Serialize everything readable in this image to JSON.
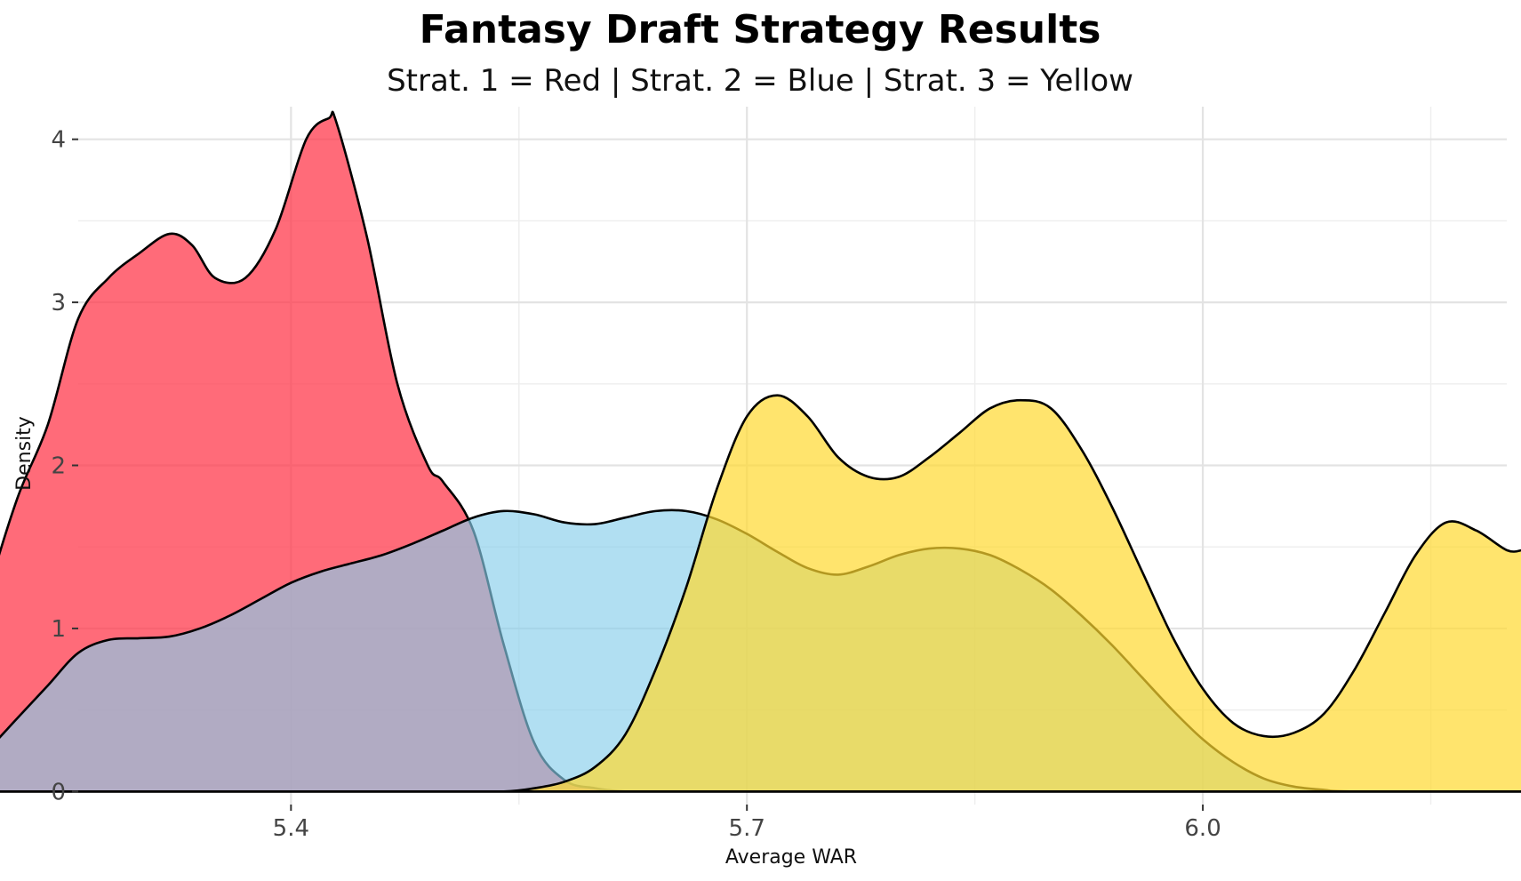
{
  "chart_data": {
    "type": "area",
    "title": "Fantasy Draft Strategy Results",
    "subtitle": "Strat. 1 = Red | Strat. 2 = Blue | Strat. 3 = Yellow",
    "xlabel": "Average WAR",
    "ylabel": "Density",
    "xlim": [
      5.26,
      6.2
    ],
    "ylim": [
      -0.08,
      4.2
    ],
    "x_ticks": [
      5.4,
      5.7,
      6.0
    ],
    "x_tick_labels": [
      "5.4",
      "5.7",
      "6.0"
    ],
    "y_ticks": [
      0,
      1,
      2,
      3,
      4
    ],
    "y_tick_labels": [
      "0",
      "1",
      "2",
      "3",
      "4"
    ],
    "grid": true,
    "legend": "none",
    "series": [
      {
        "color": "#ff3a4c",
        "opacity": 0.75,
        "x": [
          5.185,
          5.2,
          5.22,
          5.24,
          5.26,
          5.28,
          5.3,
          5.32,
          5.335,
          5.35,
          5.37,
          5.39,
          5.41,
          5.425,
          5.43,
          5.45,
          5.47,
          5.49,
          5.5,
          5.52,
          5.54,
          5.56,
          5.58,
          5.6,
          5.62,
          5.64,
          5.66,
          5.68,
          5.7,
          5.8,
          5.9,
          6.0,
          6.1,
          6.21
        ],
        "y": [
          0.66,
          1.2,
          1.8,
          2.25,
          2.9,
          3.15,
          3.3,
          3.42,
          3.35,
          3.15,
          3.15,
          3.45,
          4.0,
          4.13,
          4.1,
          3.4,
          2.5,
          2.0,
          1.9,
          1.6,
          0.9,
          0.3,
          0.07,
          0.02,
          0.0,
          0.0,
          0.0,
          0.0,
          0.0,
          0.0,
          0.0,
          0.0,
          0.0,
          0.0
        ]
      },
      {
        "color": "#87ceeb",
        "opacity": 0.65,
        "x": [
          5.185,
          5.2,
          5.22,
          5.24,
          5.26,
          5.28,
          5.3,
          5.32,
          5.34,
          5.36,
          5.38,
          5.4,
          5.42,
          5.44,
          5.46,
          5.48,
          5.5,
          5.52,
          5.54,
          5.56,
          5.58,
          5.6,
          5.62,
          5.64,
          5.66,
          5.68,
          5.7,
          5.72,
          5.74,
          5.76,
          5.78,
          5.8,
          5.82,
          5.84,
          5.86,
          5.88,
          5.9,
          5.92,
          5.94,
          5.96,
          5.98,
          6.0,
          6.02,
          6.04,
          6.06,
          6.08,
          6.1,
          6.21
        ],
        "y": [
          0.12,
          0.25,
          0.45,
          0.65,
          0.85,
          0.93,
          0.94,
          0.95,
          1.0,
          1.08,
          1.18,
          1.28,
          1.35,
          1.4,
          1.45,
          1.52,
          1.6,
          1.68,
          1.72,
          1.7,
          1.65,
          1.64,
          1.68,
          1.72,
          1.72,
          1.67,
          1.58,
          1.47,
          1.37,
          1.33,
          1.38,
          1.45,
          1.49,
          1.49,
          1.45,
          1.36,
          1.24,
          1.08,
          0.9,
          0.7,
          0.5,
          0.32,
          0.18,
          0.08,
          0.03,
          0.01,
          0.0,
          0.0
        ]
      },
      {
        "color": "#ffd82f",
        "opacity": 0.7,
        "x": [
          5.185,
          5.3,
          5.4,
          5.5,
          5.54,
          5.56,
          5.58,
          5.6,
          5.62,
          5.64,
          5.66,
          5.68,
          5.7,
          5.72,
          5.74,
          5.76,
          5.78,
          5.8,
          5.82,
          5.84,
          5.86,
          5.88,
          5.9,
          5.92,
          5.94,
          5.96,
          5.98,
          6.0,
          6.02,
          6.04,
          6.06,
          6.08,
          6.1,
          6.12,
          6.14,
          6.16,
          6.18,
          6.2,
          6.21
        ],
        "y": [
          0.0,
          0.0,
          0.0,
          0.0,
          0.0,
          0.02,
          0.06,
          0.15,
          0.35,
          0.75,
          1.25,
          1.85,
          2.3,
          2.43,
          2.3,
          2.05,
          1.93,
          1.93,
          2.05,
          2.2,
          2.35,
          2.4,
          2.35,
          2.1,
          1.75,
          1.35,
          0.95,
          0.63,
          0.42,
          0.34,
          0.36,
          0.48,
          0.75,
          1.1,
          1.45,
          1.65,
          1.6,
          1.48,
          1.48
        ]
      }
    ]
  }
}
